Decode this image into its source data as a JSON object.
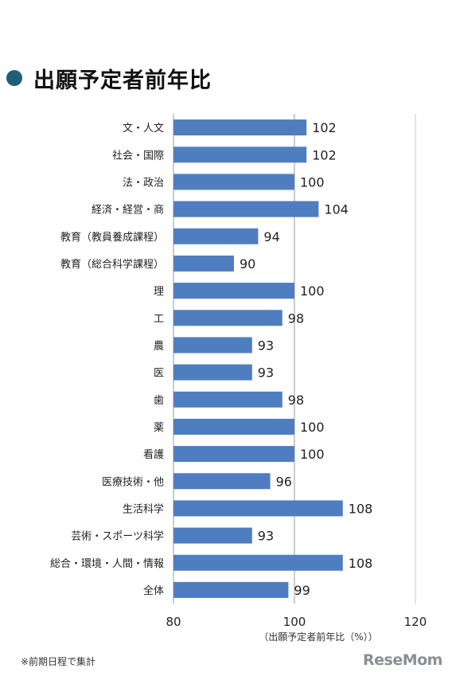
{
  "title": "出願予定者前年比",
  "footnote": "※前期日程で集計",
  "logo": "ReseMom",
  "colors": {
    "bar": "#4f7ec0",
    "title_dot": "#1f5f73",
    "reference_line": "#9a9a9a"
  },
  "chart_data": {
    "type": "bar",
    "orientation": "horizontal",
    "categories": [
      "文・人文",
      "社会・国際",
      "法・政治",
      "経済・経営・商",
      "教育（教員養成課程）",
      "教育（総合科学課程）",
      "理",
      "工",
      "農",
      "医",
      "歯",
      "薬",
      "看護",
      "医療技術・他",
      "生活科学",
      "芸術・スポーツ科学",
      "総合・環境・人間・情報",
      "全体"
    ],
    "values": [
      102,
      102,
      100,
      104,
      94,
      90,
      100,
      98,
      93,
      93,
      98,
      100,
      100,
      96,
      108,
      93,
      108,
      99
    ],
    "xlim": [
      80,
      120
    ],
    "xticks": [
      80,
      100,
      120
    ],
    "xlabel": "（出願予定者前年比（%））",
    "reference_value": 100,
    "data_labels": true,
    "grid": false
  }
}
